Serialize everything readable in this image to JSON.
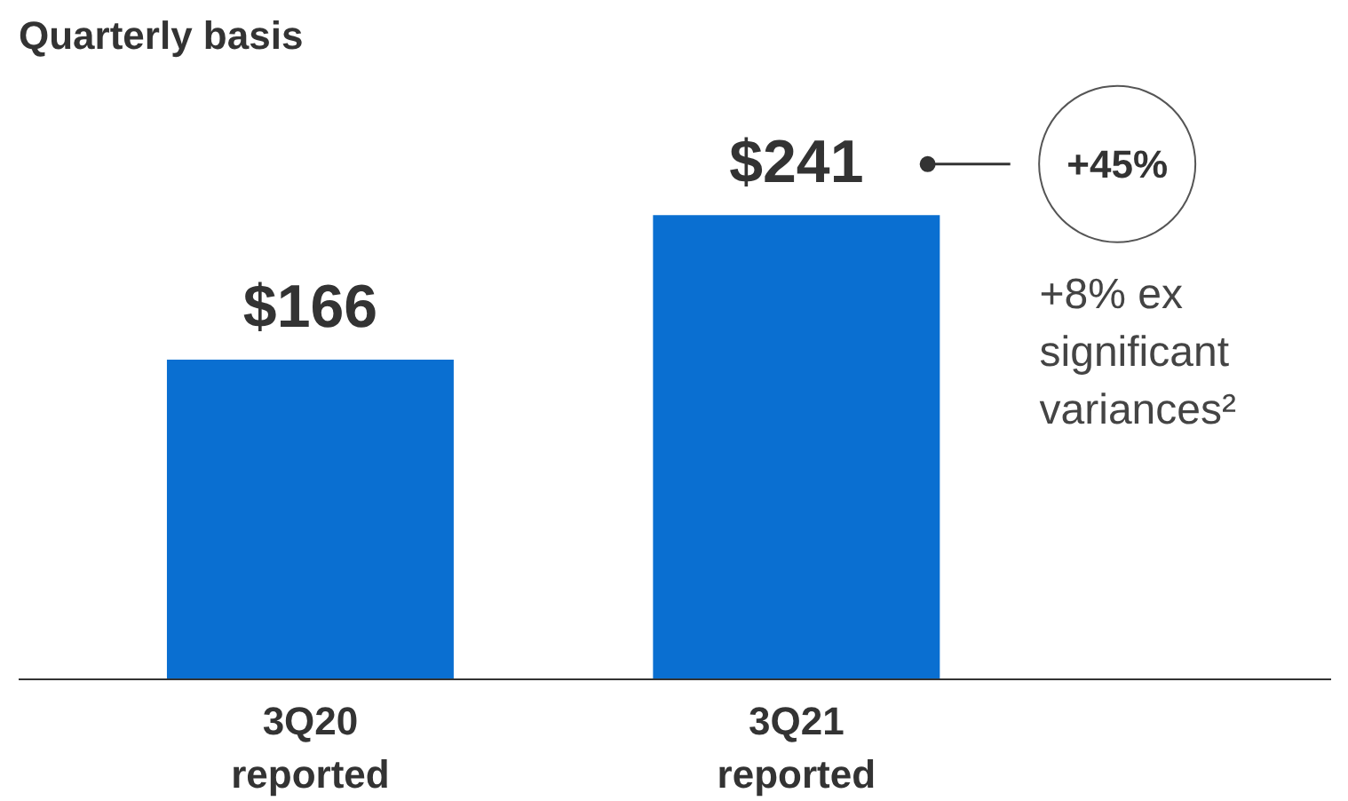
{
  "chart_data": {
    "type": "bar",
    "title": "Quarterly basis",
    "categories": [
      "3Q20\nreported",
      "3Q21\nreported"
    ],
    "values": [
      166,
      241
    ],
    "value_labels": [
      "$166",
      "$241"
    ],
    "color": "#0a6fd1",
    "annotations": [
      "+45%",
      "+8% ex\nsignificant\nvariances²"
    ],
    "grid": false
  }
}
